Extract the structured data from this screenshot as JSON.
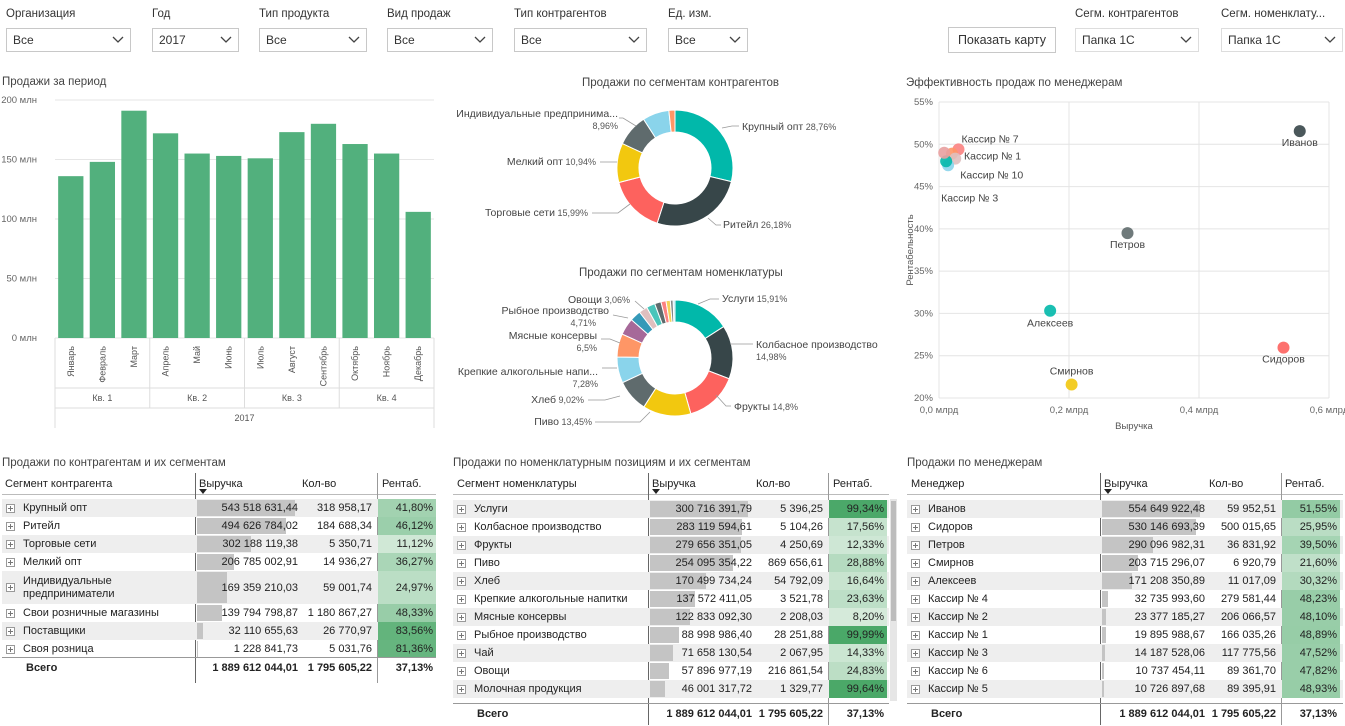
{
  "slicers": [
    {
      "label": "Организация",
      "value": "Все"
    },
    {
      "label": "Год",
      "value": "2017"
    },
    {
      "label": "Тип продукта",
      "value": "Все"
    },
    {
      "label": "Вид продаж",
      "value": "Все"
    },
    {
      "label": "Тип контрагентов",
      "value": "Все"
    },
    {
      "label": "Ед. изм.",
      "value": "Все"
    },
    {
      "label": "Сегм. контрагентов",
      "value": "Папка 1С"
    },
    {
      "label": "Сегм. номенклату...",
      "value": "Папка 1С"
    }
  ],
  "map_button": "Показать карту",
  "colors": {
    "bar": "#52b07d",
    "grid": "#e4e4e4",
    "text": "#333333"
  },
  "chart_data": [
    {
      "type": "bar",
      "title": "Продажи за период",
      "categories": [
        "Январь",
        "Февраль",
        "Март",
        "Апрель",
        "Май",
        "Июнь",
        "Июль",
        "Август",
        "Сентябрь",
        "Октябрь",
        "Ноябрь",
        "Декабрь"
      ],
      "values": [
        136,
        148,
        191,
        172,
        155,
        153,
        151,
        173,
        180,
        163,
        155,
        106
      ],
      "quarters": [
        "Кв. 1",
        "Кв. 2",
        "Кв. 3",
        "Кв. 4"
      ],
      "year": "2017",
      "ylim": [
        0,
        200
      ],
      "yticks": [
        "0 млн",
        "50 млн",
        "100 млн",
        "150 млн",
        "200 млн"
      ]
    },
    {
      "type": "pie",
      "title": "Продажи по сегментам контрагентов",
      "slices": [
        {
          "label": "Крупный опт",
          "pct": "28,76%",
          "value": 28.76,
          "color": "#01b8aa"
        },
        {
          "label": "Ритейл",
          "pct": "26,18%",
          "value": 26.18,
          "color": "#374649"
        },
        {
          "label": "Торговые сети",
          "pct": "15,99%",
          "value": 15.99,
          "color": "#fd625e"
        },
        {
          "label": "Мелкий опт",
          "pct": "10,94%",
          "value": 10.94,
          "color": "#f2c80f"
        },
        {
          "label": "Индивидуальные предпринима...",
          "pct": "8,96%",
          "value": 8.96,
          "color": "#5f6b6d"
        },
        {
          "label": "",
          "pct": "",
          "value": 7.4,
          "color": "#8ad4eb"
        },
        {
          "label": "",
          "pct": "",
          "value": 1.7,
          "color": "#fe9666"
        }
      ]
    },
    {
      "type": "pie",
      "title": "Продажи по сегментам номенклатуры",
      "slices": [
        {
          "label": "Услуги",
          "pct": "15,91%",
          "value": 15.91,
          "color": "#01b8aa"
        },
        {
          "label": "Колбасное производство",
          "pct": "14,98%",
          "value": 14.98,
          "color": "#374649"
        },
        {
          "label": "Фрукты",
          "pct": "14,8%",
          "value": 14.8,
          "color": "#fd625e"
        },
        {
          "label": "Пиво",
          "pct": "13,45%",
          "value": 13.45,
          "color": "#f2c80f"
        },
        {
          "label": "Хлеб",
          "pct": "9,02%",
          "value": 9.02,
          "color": "#5f6b6d"
        },
        {
          "label": "Крепкие алкогольные напи...",
          "pct": "7,28%",
          "value": 7.28,
          "color": "#8ad4eb"
        },
        {
          "label": "Мясные консервы",
          "pct": "6,5%",
          "value": 6.5,
          "color": "#fe9666"
        },
        {
          "label": "Рыбное производство",
          "pct": "4,71%",
          "value": 4.71,
          "color": "#a66999"
        },
        {
          "label": "Овощи",
          "pct": "3,06%",
          "value": 3.06,
          "color": "#3599b8"
        },
        {
          "label": "",
          "pct": "",
          "value": 2.4,
          "color": "#dfbfbf"
        },
        {
          "label": "",
          "pct": "",
          "value": 2.4,
          "color": "#4ac5bb"
        },
        {
          "label": "",
          "pct": "",
          "value": 1.8,
          "color": "#5f6b6d"
        },
        {
          "label": "",
          "pct": "",
          "value": 1.4,
          "color": "#fb8281"
        },
        {
          "label": "",
          "pct": "",
          "value": 1.2,
          "color": "#f4d25a"
        },
        {
          "label": "",
          "pct": "",
          "value": 0.8,
          "color": "#7f898a"
        },
        {
          "label": "",
          "pct": "",
          "value": 0.5,
          "color": "#a4ddee"
        }
      ]
    },
    {
      "type": "scatter",
      "title": "Эффективность продаж по менеджерам",
      "xlabel": "Выручка",
      "ylabel": "Рентабельность",
      "xlim": [
        0,
        0.6
      ],
      "ylim": [
        20,
        55
      ],
      "xticks": [
        {
          "v": 0,
          "t": "0,0 млрд"
        },
        {
          "v": 0.2,
          "t": "0,2 млрд"
        },
        {
          "v": 0.4,
          "t": "0,4 млрд"
        },
        {
          "v": 0.6,
          "t": "0,6 млрд"
        }
      ],
      "yticks": [
        {
          "v": 20,
          "t": "20%"
        },
        {
          "v": 25,
          "t": "25%"
        },
        {
          "v": 30,
          "t": "30%"
        },
        {
          "v": 35,
          "t": "35%"
        },
        {
          "v": 40,
          "t": "40%"
        },
        {
          "v": 45,
          "t": "45%"
        },
        {
          "v": 50,
          "t": "50%"
        },
        {
          "v": 55,
          "t": "55%"
        }
      ],
      "points": [
        {
          "name": "Иванов",
          "x": 0.555,
          "y": 51.55,
          "color": "#374649"
        },
        {
          "name": "Сидоров",
          "x": 0.53,
          "y": 25.95,
          "color": "#fd625e"
        },
        {
          "name": "Петров",
          "x": 0.29,
          "y": 39.5,
          "color": "#5f6b6d"
        },
        {
          "name": "Смирнов",
          "x": 0.204,
          "y": 21.6,
          "color": "#f2c80f"
        },
        {
          "name": "Алексеев",
          "x": 0.171,
          "y": 30.32,
          "color": "#01b8aa"
        },
        {
          "name": "Кассир № 7",
          "x": 0.03,
          "y": 49.4,
          "color": "#fb8281"
        },
        {
          "name": "Кассир № 1",
          "x": 0.02,
          "y": 48.89,
          "color": "#fe9666"
        },
        {
          "name": "Кассир № 10",
          "x": 0.025,
          "y": 48.3,
          "color": "#dfbfbf"
        },
        {
          "name": "Кассир № 3",
          "x": 0.014,
          "y": 47.52,
          "color": "#8ad4eb"
        },
        {
          "name": "",
          "x": 0.011,
          "y": 48.0,
          "color": "#01b8aa"
        },
        {
          "name": "",
          "x": 0.008,
          "y": 49.0,
          "color": "#e8a0a0"
        }
      ]
    }
  ],
  "tables": {
    "contragents": {
      "title": "Продажи по контрагентам и их сегментам",
      "headers": [
        "Сегмент контрагента",
        "Выручка",
        "Кол-во",
        "Рентаб."
      ],
      "rows": [
        {
          "name": "Крупный опт",
          "rev": "543 518 631,44",
          "revFrac": 1.0,
          "qty": "318 958,17",
          "rent": "41,80%",
          "rentVal": 41.8
        },
        {
          "name": "Ритейл",
          "rev": "494 626 784,02",
          "revFrac": 0.91,
          "qty": "184 688,34",
          "rent": "46,12%",
          "rentVal": 46.12
        },
        {
          "name": "Торговые сети",
          "rev": "302 188 119,38",
          "revFrac": 0.556,
          "qty": "5 350,71",
          "rent": "11,12%",
          "rentVal": 11.12
        },
        {
          "name": "Мелкий опт",
          "rev": "206 785 002,91",
          "revFrac": 0.38,
          "qty": "14 936,27",
          "rent": "36,27%",
          "rentVal": 36.27
        },
        {
          "name": "Индивидуальные предприниматели",
          "rev": "169 359 210,03",
          "revFrac": 0.31,
          "qty": "59 001,74",
          "rent": "24,97%",
          "rentVal": 24.97
        },
        {
          "name": "Свои розничные магазины",
          "rev": "139 794 798,87",
          "revFrac": 0.257,
          "qty": "1 180 867,27",
          "rent": "48,33%",
          "rentVal": 48.33
        },
        {
          "name": "Поставщики",
          "rev": "32 110 655,63",
          "revFrac": 0.059,
          "qty": "26 770,97",
          "rent": "83,56%",
          "rentVal": 83.56
        },
        {
          "name": "Своя розница",
          "rev": "1 228 841,73",
          "revFrac": 0.002,
          "qty": "5 031,76",
          "rent": "81,36%",
          "rentVal": 81.36
        }
      ],
      "total": {
        "label": "Всего",
        "rev": "1 889 612 044,01",
        "qty": "1 795 605,22",
        "rent": "37,13%"
      }
    },
    "nomenclature": {
      "title": "Продажи по номенклатурным позициям и их сегментам",
      "headers": [
        "Сегмент номенклатуры",
        "Выручка",
        "Кол-во",
        "Рентаб."
      ],
      "rows": [
        {
          "name": "Услуги",
          "rev": "300 716 391,79",
          "revFrac": 1.0,
          "qty": "5 396,25",
          "rent": "99,34%",
          "rentVal": 99.34
        },
        {
          "name": "Колбасное производство",
          "rev": "283 119 594,61",
          "revFrac": 0.941,
          "qty": "5 104,26",
          "rent": "17,56%",
          "rentVal": 17.56
        },
        {
          "name": "Фрукты",
          "rev": "279 656 351,05",
          "revFrac": 0.93,
          "qty": "4 250,69",
          "rent": "12,33%",
          "rentVal": 12.33
        },
        {
          "name": "Пиво",
          "rev": "254 095 354,22",
          "revFrac": 0.845,
          "qty": "869 656,61",
          "rent": "28,88%",
          "rentVal": 28.88
        },
        {
          "name": "Хлеб",
          "rev": "170 499 734,24",
          "revFrac": 0.567,
          "qty": "54 792,09",
          "rent": "16,64%",
          "rentVal": 16.64
        },
        {
          "name": "Крепкие алкогольные напитки",
          "rev": "137 572 411,05",
          "revFrac": 0.457,
          "qty": "3 521,78",
          "rent": "23,63%",
          "rentVal": 23.63
        },
        {
          "name": "Мясные консервы",
          "rev": "122 833 092,30",
          "revFrac": 0.408,
          "qty": "2 208,03",
          "rent": "8,20%",
          "rentVal": 8.2
        },
        {
          "name": "Рыбное производство",
          "rev": "88 998 986,40",
          "revFrac": 0.296,
          "qty": "28 251,88",
          "rent": "99,99%",
          "rentVal": 99.99
        },
        {
          "name": "Чай",
          "rev": "71 658 130,54",
          "revFrac": 0.238,
          "qty": "2 067,95",
          "rent": "14,33%",
          "rentVal": 14.33
        },
        {
          "name": "Овощи",
          "rev": "57 896 977,19",
          "revFrac": 0.193,
          "qty": "216 861,54",
          "rent": "24,83%",
          "rentVal": 24.83
        },
        {
          "name": "Молочная продукция",
          "rev": "46 001 317,72",
          "revFrac": 0.153,
          "qty": "1 329,77",
          "rent": "99,64%",
          "rentVal": 99.64
        }
      ],
      "total": {
        "label": "Всего",
        "rev": "1 889 612 044,01",
        "qty": "1 795 605,22",
        "rent": "37,13%"
      }
    },
    "managers": {
      "title": "Продажи по менеджерам",
      "headers": [
        "Менеджер",
        "Выручка",
        "Кол-во",
        "Рентаб."
      ],
      "rows": [
        {
          "name": "Иванов",
          "rev": "554 649 922,48",
          "revFrac": 1.0,
          "qty": "59 952,51",
          "rent": "51,55%",
          "rentVal": 51.55
        },
        {
          "name": "Сидоров",
          "rev": "530 146 693,39",
          "revFrac": 0.956,
          "qty": "500 015,65",
          "rent": "25,95%",
          "rentVal": 25.95
        },
        {
          "name": "Петров",
          "rev": "290 096 982,31",
          "revFrac": 0.523,
          "qty": "36 831,92",
          "rent": "39,50%",
          "rentVal": 39.5
        },
        {
          "name": "Смирнов",
          "rev": "203 715 296,07",
          "revFrac": 0.367,
          "qty": "6 920,79",
          "rent": "21,60%",
          "rentVal": 21.6
        },
        {
          "name": "Алексеев",
          "rev": "171 208 350,89",
          "revFrac": 0.309,
          "qty": "11 017,09",
          "rent": "30,32%",
          "rentVal": 30.32
        },
        {
          "name": "Кассир № 4",
          "rev": "32 735 993,60",
          "revFrac": 0.059,
          "qty": "279 581,44",
          "rent": "48,23%",
          "rentVal": 48.23
        },
        {
          "name": "Кассир № 2",
          "rev": "23 377 185,27",
          "revFrac": 0.042,
          "qty": "206 066,57",
          "rent": "48,10%",
          "rentVal": 48.1
        },
        {
          "name": "Кассир № 1",
          "rev": "19 895 988,67",
          "revFrac": 0.036,
          "qty": "166 035,26",
          "rent": "48,89%",
          "rentVal": 48.89
        },
        {
          "name": "Кассир № 3",
          "rev": "14 187 528,06",
          "revFrac": 0.026,
          "qty": "117 775,56",
          "rent": "47,52%",
          "rentVal": 47.52
        },
        {
          "name": "Кассир № 6",
          "rev": "10 737 454,11",
          "revFrac": 0.019,
          "qty": "89 361,70",
          "rent": "47,82%",
          "rentVal": 47.82
        },
        {
          "name": "Кассир № 5",
          "rev": "10 726 897,68",
          "revFrac": 0.019,
          "qty": "89 395,91",
          "rent": "48,93%",
          "rentVal": 48.93
        }
      ],
      "total": {
        "label": "Всего",
        "rev": "1 889 612 044,01",
        "qty": "1 795 605,22",
        "rent": "37,13%"
      }
    }
  }
}
